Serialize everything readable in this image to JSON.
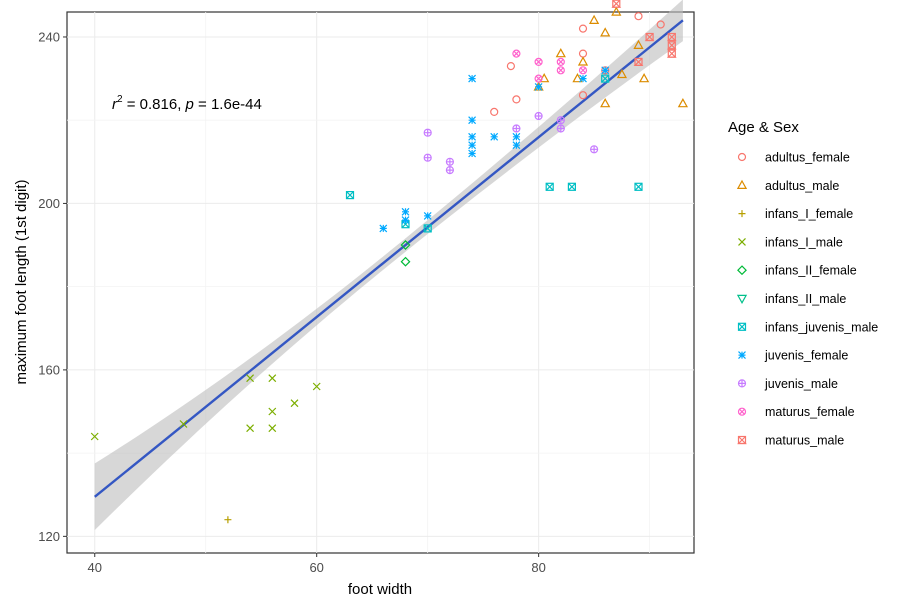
{
  "chart_data": {
    "type": "scatter",
    "title": "",
    "xlabel": "foot width",
    "ylabel": "maximum foot length (1st digit)",
    "xlim": [
      37.5,
      94
    ],
    "ylim": [
      116,
      246
    ],
    "xticks": [
      40,
      60,
      80
    ],
    "yticks": [
      120,
      160,
      200,
      240
    ],
    "x_tick_labels": [
      "40",
      "60",
      "80"
    ],
    "y_tick_labels": [
      "120",
      "160",
      "200",
      "240"
    ],
    "grid": true,
    "legend_position": "right",
    "legend_title": "Age & Sex",
    "annotation": {
      "r_symbol": "r",
      "r_exp": "2",
      "r_value": " = 0.816, ",
      "p_symbol": "p",
      "p_value": " = 1.6e-44"
    },
    "regression": {
      "x_start": 40,
      "y_start": 129.5,
      "x_end": 93,
      "y_end": 244,
      "ci_start": 8,
      "ci_mid": 1.6,
      "ci_end": 5,
      "color": "#3457c3",
      "band_color": "#bdbdbd"
    },
    "series": [
      {
        "name": "adultus_female",
        "color": "#f8766d",
        "marker": "circle",
        "points": [
          [
            76,
            222
          ],
          [
            77.5,
            233
          ],
          [
            78,
            225
          ],
          [
            84,
            236
          ],
          [
            84,
            242
          ],
          [
            86,
            232
          ],
          [
            89,
            245
          ],
          [
            91,
            243
          ],
          [
            84,
            226
          ]
        ]
      },
      {
        "name": "adultus_male",
        "color": "#dc8c00",
        "marker": "triangle",
        "points": [
          [
            80,
            228
          ],
          [
            80.5,
            230
          ],
          [
            82,
            236
          ],
          [
            83.5,
            230
          ],
          [
            84,
            234
          ],
          [
            85,
            244
          ],
          [
            86,
            241
          ],
          [
            86,
            224
          ],
          [
            87,
            246
          ],
          [
            87.5,
            231
          ],
          [
            89,
            238
          ],
          [
            89.5,
            230
          ],
          [
            93,
            224
          ]
        ]
      },
      {
        "name": "infans_I_female",
        "color": "#b79f00",
        "marker": "tee",
        "points": [
          [
            52,
            124
          ]
        ]
      },
      {
        "name": "infans_I_male",
        "color": "#7cae00",
        "marker": "x",
        "points": [
          [
            40,
            144
          ],
          [
            48,
            147
          ],
          [
            54,
            146
          ],
          [
            54,
            158
          ],
          [
            56,
            158
          ],
          [
            56,
            150
          ],
          [
            56,
            146
          ],
          [
            58,
            152
          ],
          [
            60,
            156
          ]
        ]
      },
      {
        "name": "infans_II_female",
        "color": "#00ba38",
        "marker": "diamond",
        "points": [
          [
            68,
            186
          ],
          [
            68,
            190
          ]
        ]
      },
      {
        "name": "infans_II_male",
        "color": "#00c08b",
        "marker": "tri-down",
        "points": []
      },
      {
        "name": "infans_juvenis_male",
        "color": "#00bfc4",
        "marker": "square-x",
        "points": [
          [
            63,
            202
          ],
          [
            68,
            195
          ],
          [
            70,
            194
          ],
          [
            81,
            204
          ],
          [
            83,
            204
          ],
          [
            86,
            230
          ],
          [
            89,
            204
          ]
        ]
      },
      {
        "name": "juvenis_female",
        "color": "#00a9ff",
        "marker": "asterisk",
        "points": [
          [
            66,
            194
          ],
          [
            68,
            196
          ],
          [
            68,
            198
          ],
          [
            70,
            197
          ],
          [
            74,
            212
          ],
          [
            74,
            214
          ],
          [
            74,
            216
          ],
          [
            74,
            220
          ],
          [
            74,
            230
          ],
          [
            76,
            216
          ],
          [
            78,
            214
          ],
          [
            78,
            216
          ],
          [
            80,
            228
          ],
          [
            84,
            230
          ],
          [
            86,
            232
          ]
        ]
      },
      {
        "name": "juvenis_male",
        "color": "#c77cff",
        "marker": "circle-plus",
        "points": [
          [
            70,
            211
          ],
          [
            70,
            217
          ],
          [
            72,
            208
          ],
          [
            72,
            210
          ],
          [
            78,
            218
          ],
          [
            80,
            221
          ],
          [
            82,
            218
          ],
          [
            82,
            220
          ],
          [
            85,
            213
          ]
        ]
      },
      {
        "name": "maturus_female",
        "color": "#ff61cc",
        "marker": "circle-cross",
        "points": [
          [
            78,
            236
          ],
          [
            80,
            234
          ],
          [
            82,
            234
          ],
          [
            80,
            230
          ],
          [
            82,
            232
          ],
          [
            84,
            232
          ]
        ]
      },
      {
        "name": "maturus_male",
        "color": "#f8766d",
        "marker": "hourglass",
        "points": [
          [
            87,
            248
          ],
          [
            89,
            234
          ],
          [
            90,
            240
          ],
          [
            92,
            250
          ],
          [
            92,
            240
          ],
          [
            92,
            236
          ],
          [
            92,
            238
          ]
        ]
      }
    ]
  }
}
